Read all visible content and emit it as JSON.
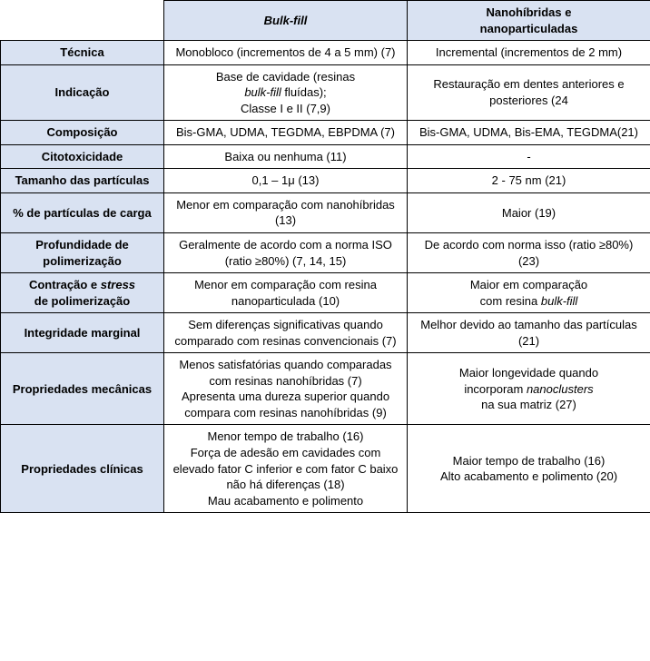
{
  "table": {
    "colors": {
      "header_bg": "#d9e2f2",
      "border": "#000000",
      "text": "#000000"
    },
    "fontsize": 13,
    "header": {
      "col1": "Bulk-fill",
      "col2_line1": "Nanohíbridas e",
      "col2_line2": "nanoparticuladas"
    },
    "rows": [
      {
        "label": "Técnica",
        "c1": "Monobloco (incrementos de 4 a 5 mm) (7)",
        "c2": "Incremental (incrementos de 2 mm)"
      },
      {
        "label": "Indicação",
        "c1_l1": "Base de cavidade (resinas",
        "c1_l2_pre": "",
        "c1_l2_it": "bulk-fill",
        "c1_l2_post": " fluídas);",
        "c1_l3": "Classe I e II (7,9)",
        "c2": "Restauração em dentes anteriores e posteriores (24"
      },
      {
        "label": "Composição",
        "c1": "Bis-GMA, UDMA, TEGDMA, EBPDMA (7)",
        "c2": "Bis-GMA, UDMA, Bis-EMA, TEGDMA(21)"
      },
      {
        "label": "Citotoxicidade",
        "c1": "Baixa ou nenhuma (11)",
        "c2": "-"
      },
      {
        "label": "Tamanho das partículas",
        "c1": "0,1 – 1μ (13)",
        "c2": "2 - 75 nm (21)"
      },
      {
        "label": "% de partículas de carga",
        "c1": "Menor em comparação com nanohíbridas (13)",
        "c2": "Maior (19)"
      },
      {
        "label": "Profundidade de polimerização",
        "c1": "Geralmente de acordo com a norma ISO (ratio ≥80%) (7, 14, 15)",
        "c2": "De acordo com norma isso (ratio ≥80%) (23)"
      },
      {
        "label_l1": "Contração e ",
        "label_it": "stress",
        "label_l2": "de polimerização",
        "c1": "Menor em comparação com resina nanoparticulada (10)",
        "c2_l1": "Maior em comparação",
        "c2_l2_pre": "com resina ",
        "c2_l2_it": "bulk-fill"
      },
      {
        "label": "Integridade marginal",
        "c1": "Sem diferenças significativas quando comparado com resinas convencionais (7)",
        "c2": "Melhor devido ao tamanho das partículas (21)"
      },
      {
        "label": "Propriedades mecânicas",
        "c1_p1": "Menos satisfatórias quando comparadas com resinas nanohíbridas (7)",
        "c1_p2": "Apresenta uma dureza superior quando compara com resinas nanohíbridas (9)",
        "c2_l1": "Maior longevidade quando",
        "c2_l2_pre": "incorporam ",
        "c2_l2_it": "nanoclusters",
        "c2_l3": "na sua matriz (27)"
      },
      {
        "label": "Propriedades clínicas",
        "c1_p1": "Menor tempo de trabalho (16)",
        "c1_p2": "Força de adesão em cavidades com elevado fator C inferior e com fator C baixo não há diferenças (18)",
        "c1_p3": "Mau acabamento e polimento",
        "c2_p1": "Maior tempo de trabalho (16)",
        "c2_p2": "Alto acabamento e polimento (20)"
      }
    ]
  }
}
